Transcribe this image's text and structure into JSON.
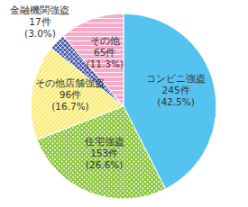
{
  "chart_data": {
    "type": "pie",
    "categories": [
      "コンビニ強盗",
      "住宅強盗",
      "その他店舗強盗",
      "金融機関強盗",
      "その他"
    ],
    "values": [
      245,
      153,
      96,
      17,
      65
    ],
    "value_labels": [
      "245件",
      "153件",
      "96件",
      "17件",
      "65件"
    ],
    "percent_labels": [
      "(42.5%)",
      "(26.6%)",
      "(16.7%)",
      "(3.0%)",
      "(11.3%)"
    ],
    "colors": [
      "#55c3ef",
      "#8dc63f",
      "#fff59d",
      "#4b5aa6",
      "#f6a9c9"
    ],
    "data_labels": true
  }
}
